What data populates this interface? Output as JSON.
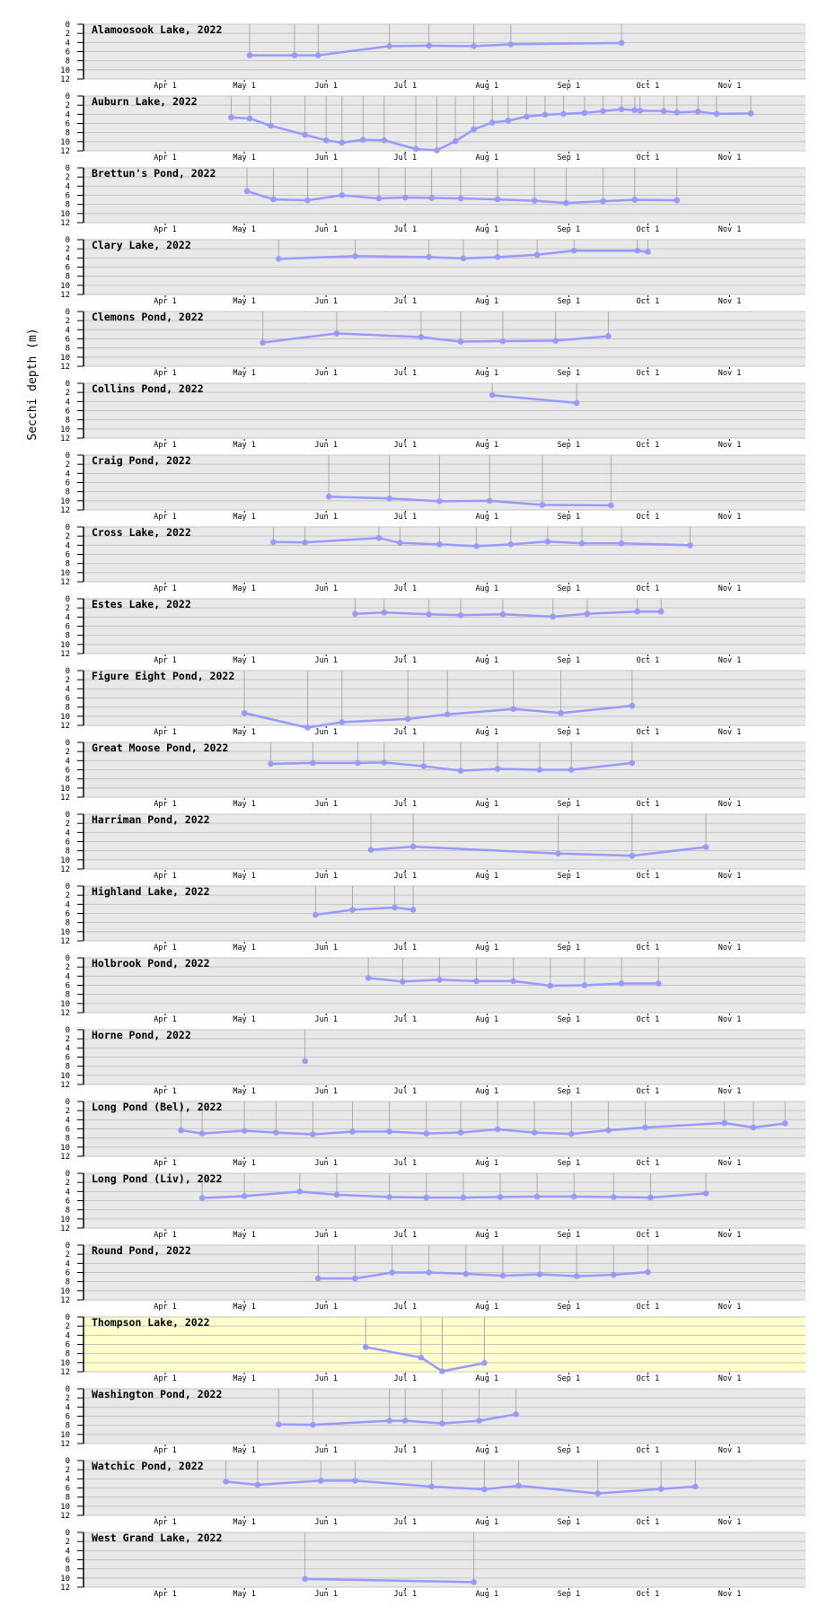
{
  "chart_data": {
    "type": "line",
    "ylabel": "Secchi depth (m)",
    "ylim": [
      0,
      12
    ],
    "y_inverted": true,
    "xlim": [
      "03-01",
      "11-30"
    ],
    "year": 2022,
    "yticks": [
      "0",
      "2",
      "4",
      "6",
      "8",
      "10",
      "12"
    ],
    "xticks": [
      {
        "label": "Apr 1",
        "date": "04-01"
      },
      {
        "label": "May 1",
        "date": "05-01"
      },
      {
        "label": "Jun 1",
        "date": "06-01"
      },
      {
        "label": "Jul 1",
        "date": "07-01"
      },
      {
        "label": "Aug 1",
        "date": "08-01"
      },
      {
        "label": "Sep 1",
        "date": "09-01"
      },
      {
        "label": "Oct 1",
        "date": "10-01"
      },
      {
        "label": "Nov 1",
        "date": "11-01"
      }
    ],
    "colors": {
      "panel_bg": "#e8e8e8",
      "highlight_bg": "#ffffcc",
      "grid": "#c4c4c4",
      "stem": "#aaaaaa",
      "series": "#9999ff"
    },
    "panels": [
      {
        "title": "Alamoosook Lake, 2022",
        "points": [
          [
            "05-03",
            6.8
          ],
          [
            "05-20",
            6.8
          ],
          [
            "05-29",
            6.8
          ],
          [
            "06-25",
            4.8
          ],
          [
            "07-10",
            4.7
          ],
          [
            "07-27",
            4.8
          ],
          [
            "08-10",
            4.4
          ],
          [
            "09-21",
            4.1
          ]
        ]
      },
      {
        "title": "Auburn Lake, 2022",
        "points": [
          [
            "04-26",
            4.7
          ],
          [
            "05-03",
            4.9
          ],
          [
            "05-11",
            6.5
          ],
          [
            "05-24",
            8.5
          ],
          [
            "06-01",
            9.7
          ],
          [
            "06-07",
            10.2
          ],
          [
            "06-15",
            9.6
          ],
          [
            "06-23",
            9.7
          ],
          [
            "07-05",
            11.6
          ],
          [
            "07-13",
            11.9
          ],
          [
            "07-20",
            9.9
          ],
          [
            "07-27",
            7.3
          ],
          [
            "08-03",
            5.8
          ],
          [
            "08-09",
            5.4
          ],
          [
            "08-16",
            4.5
          ],
          [
            "08-23",
            4.1
          ],
          [
            "08-30",
            3.9
          ],
          [
            "09-07",
            3.7
          ],
          [
            "09-14",
            3.3
          ],
          [
            "09-21",
            2.9
          ],
          [
            "09-26",
            3.1
          ],
          [
            "09-28",
            3.2
          ],
          [
            "10-07",
            3.3
          ],
          [
            "10-12",
            3.6
          ],
          [
            "10-20",
            3.4
          ],
          [
            "10-27",
            3.9
          ],
          [
            "11-09",
            3.8
          ]
        ]
      },
      {
        "title": "Brettun's Pond, 2022",
        "points": [
          [
            "05-02",
            5.1
          ],
          [
            "05-12",
            6.9
          ],
          [
            "05-25",
            7.1
          ],
          [
            "06-07",
            6.0
          ],
          [
            "06-21",
            6.7
          ],
          [
            "07-01",
            6.5
          ],
          [
            "07-11",
            6.6
          ],
          [
            "07-22",
            6.7
          ],
          [
            "08-05",
            6.9
          ],
          [
            "08-19",
            7.2
          ],
          [
            "08-31",
            7.7
          ],
          [
            "09-14",
            7.3
          ],
          [
            "09-26",
            7.0
          ],
          [
            "10-12",
            7.1
          ]
        ]
      },
      {
        "title": "Clary Lake, 2022",
        "points": [
          [
            "05-14",
            4.2
          ],
          [
            "06-12",
            3.6
          ],
          [
            "07-10",
            3.8
          ],
          [
            "07-23",
            4.1
          ],
          [
            "08-05",
            3.8
          ],
          [
            "08-20",
            3.3
          ],
          [
            "09-03",
            2.4
          ],
          [
            "09-27",
            2.4
          ],
          [
            "10-01",
            2.7
          ]
        ]
      },
      {
        "title": "Clemons Pond, 2022",
        "points": [
          [
            "05-08",
            6.8
          ],
          [
            "06-05",
            4.8
          ],
          [
            "07-07",
            5.6
          ],
          [
            "07-22",
            6.6
          ],
          [
            "08-07",
            6.5
          ],
          [
            "08-27",
            6.4
          ],
          [
            "09-16",
            5.4
          ]
        ]
      },
      {
        "title": "Collins Pond, 2022",
        "points": [
          [
            "08-03",
            2.6
          ],
          [
            "09-04",
            4.3
          ]
        ]
      },
      {
        "title": "Craig Pond, 2022",
        "points": [
          [
            "06-02",
            9.1
          ],
          [
            "06-25",
            9.5
          ],
          [
            "07-14",
            10.1
          ],
          [
            "08-02",
            10.0
          ],
          [
            "08-22",
            10.9
          ],
          [
            "09-17",
            11.0
          ]
        ]
      },
      {
        "title": "Cross Lake, 2022",
        "points": [
          [
            "05-12",
            3.3
          ],
          [
            "05-24",
            3.4
          ],
          [
            "06-21",
            2.4
          ],
          [
            "06-29",
            3.5
          ],
          [
            "07-14",
            3.8
          ],
          [
            "07-28",
            4.2
          ],
          [
            "08-10",
            3.8
          ],
          [
            "08-24",
            3.2
          ],
          [
            "09-06",
            3.6
          ],
          [
            "09-21",
            3.6
          ],
          [
            "10-17",
            4.0
          ]
        ]
      },
      {
        "title": "Estes Lake, 2022",
        "points": [
          [
            "06-12",
            3.3
          ],
          [
            "06-23",
            3.0
          ],
          [
            "07-10",
            3.4
          ],
          [
            "07-22",
            3.6
          ],
          [
            "08-07",
            3.4
          ],
          [
            "08-26",
            3.9
          ],
          [
            "09-08",
            3.3
          ],
          [
            "09-27",
            2.8
          ],
          [
            "10-06",
            2.8
          ]
        ]
      },
      {
        "title": "Figure Eight Pond, 2022",
        "points": [
          [
            "05-01",
            9.3
          ],
          [
            "05-25",
            12.5
          ],
          [
            "06-07",
            11.3
          ],
          [
            "07-02",
            10.6
          ],
          [
            "07-17",
            9.6
          ],
          [
            "08-11",
            8.4
          ],
          [
            "08-29",
            9.3
          ],
          [
            "09-25",
            7.7
          ]
        ]
      },
      {
        "title": "Great Moose Pond, 2022",
        "points": [
          [
            "05-11",
            4.7
          ],
          [
            "05-27",
            4.5
          ],
          [
            "06-13",
            4.5
          ],
          [
            "06-23",
            4.4
          ],
          [
            "07-08",
            5.2
          ],
          [
            "07-22",
            6.2
          ],
          [
            "08-05",
            5.8
          ],
          [
            "08-21",
            6.0
          ],
          [
            "09-02",
            6.0
          ],
          [
            "09-25",
            4.5
          ]
        ]
      },
      {
        "title": "Harriman Pond, 2022",
        "points": [
          [
            "06-18",
            7.8
          ],
          [
            "07-04",
            7.1
          ],
          [
            "08-28",
            8.6
          ],
          [
            "09-25",
            9.1
          ],
          [
            "10-23",
            7.2
          ]
        ]
      },
      {
        "title": "Highland Lake, 2022",
        "points": [
          [
            "05-28",
            6.3
          ],
          [
            "06-11",
            5.2
          ],
          [
            "06-27",
            4.7
          ],
          [
            "07-04",
            5.2
          ]
        ]
      },
      {
        "title": "Holbrook Pond, 2022",
        "points": [
          [
            "06-17",
            4.4
          ],
          [
            "06-30",
            5.2
          ],
          [
            "07-14",
            4.8
          ],
          [
            "07-28",
            5.1
          ],
          [
            "08-11",
            5.1
          ],
          [
            "08-25",
            6.1
          ],
          [
            "09-07",
            6.0
          ],
          [
            "09-21",
            5.6
          ],
          [
            "10-05",
            5.6
          ]
        ]
      },
      {
        "title": "Horne Pond, 2022",
        "points": [
          [
            "05-24",
            6.9
          ]
        ]
      },
      {
        "title": "Long Pond (Bel), 2022",
        "points": [
          [
            "04-07",
            6.3
          ],
          [
            "04-15",
            7.0
          ],
          [
            "05-01",
            6.4
          ],
          [
            "05-13",
            6.8
          ],
          [
            "05-27",
            7.2
          ],
          [
            "06-11",
            6.6
          ],
          [
            "06-25",
            6.6
          ],
          [
            "07-09",
            7.0
          ],
          [
            "07-22",
            6.8
          ],
          [
            "08-05",
            6.1
          ],
          [
            "08-19",
            6.8
          ],
          [
            "09-02",
            7.1
          ],
          [
            "09-16",
            6.3
          ],
          [
            "09-30",
            5.7
          ],
          [
            "10-30",
            4.7
          ],
          [
            "11-10",
            5.7
          ],
          [
            "11-22",
            4.8
          ]
        ]
      },
      {
        "title": "Long Pond (Liv), 2022",
        "points": [
          [
            "04-15",
            5.4
          ],
          [
            "05-01",
            5.0
          ],
          [
            "05-22",
            4.0
          ],
          [
            "06-05",
            4.7
          ],
          [
            "06-25",
            5.2
          ],
          [
            "07-09",
            5.3
          ],
          [
            "07-23",
            5.3
          ],
          [
            "08-06",
            5.2
          ],
          [
            "08-20",
            5.1
          ],
          [
            "09-03",
            5.1
          ],
          [
            "09-18",
            5.2
          ],
          [
            "10-02",
            5.3
          ],
          [
            "10-23",
            4.4
          ]
        ]
      },
      {
        "title": "Round Pond, 2022",
        "points": [
          [
            "05-29",
            7.3
          ],
          [
            "06-12",
            7.3
          ],
          [
            "06-26",
            6.0
          ],
          [
            "07-10",
            6.0
          ],
          [
            "07-24",
            6.3
          ],
          [
            "08-07",
            6.7
          ],
          [
            "08-21",
            6.4
          ],
          [
            "09-04",
            6.8
          ],
          [
            "09-18",
            6.5
          ],
          [
            "10-01",
            5.9
          ]
        ]
      },
      {
        "title": "Thompson Lake, 2022",
        "highlighted": true,
        "points": [
          [
            "06-16",
            6.6
          ],
          [
            "07-07",
            8.9
          ],
          [
            "07-15",
            11.9
          ],
          [
            "07-31",
            10.1
          ]
        ]
      },
      {
        "title": "Washington Pond, 2022",
        "points": [
          [
            "05-14",
            7.8
          ],
          [
            "05-27",
            7.9
          ],
          [
            "06-25",
            7.0
          ],
          [
            "07-01",
            7.0
          ],
          [
            "07-15",
            7.6
          ],
          [
            "07-29",
            7.0
          ],
          [
            "08-12",
            5.6
          ]
        ]
      },
      {
        "title": "Watchic Pond, 2022",
        "points": [
          [
            "04-24",
            4.6
          ],
          [
            "05-06",
            5.3
          ],
          [
            "05-30",
            4.4
          ],
          [
            "06-12",
            4.4
          ],
          [
            "07-11",
            5.7
          ],
          [
            "07-31",
            6.3
          ],
          [
            "08-13",
            5.5
          ],
          [
            "09-12",
            7.2
          ],
          [
            "10-06",
            6.2
          ],
          [
            "10-19",
            5.7
          ]
        ]
      },
      {
        "title": "West Grand Lake, 2022",
        "points": [
          [
            "05-24",
            10.2
          ],
          [
            "07-27",
            10.9
          ]
        ]
      }
    ]
  }
}
